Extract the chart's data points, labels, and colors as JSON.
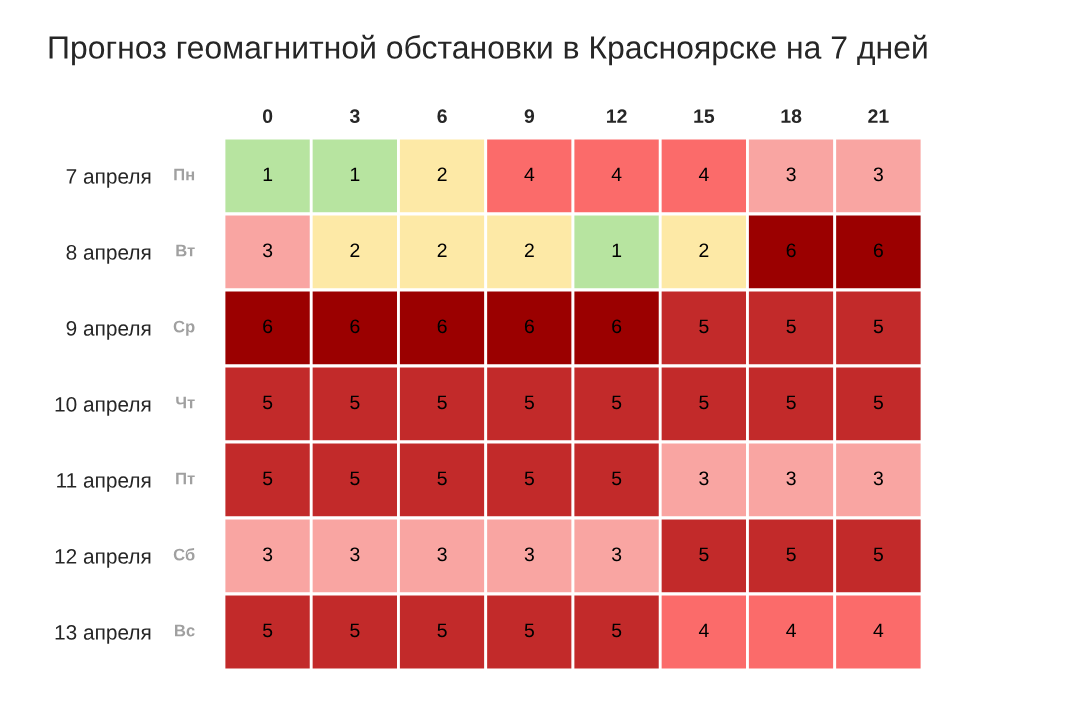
{
  "chart_data": {
    "type": "heatmap",
    "title": "Прогноз геомагнитной обстановки в Красноярске на 7 дней",
    "categories": [
      "0",
      "3",
      "6",
      "9",
      "12",
      "15",
      "18",
      "21"
    ],
    "y_categories": [
      "7 апреля",
      "8 апреля",
      "9 апреля",
      "10 апреля",
      "11 апреля",
      "12 апреля",
      "13 апреля"
    ],
    "y2_categories": [
      "Пн",
      "Вт",
      "Ср",
      "Чт",
      "Пт",
      "Сб",
      "Вс"
    ],
    "cells": [
      [
        1,
        1,
        2,
        4,
        4,
        4,
        3,
        3
      ],
      [
        3,
        2,
        2,
        2,
        1,
        2,
        6,
        6
      ],
      [
        6,
        6,
        6,
        6,
        6,
        5,
        5,
        5
      ],
      [
        5,
        5,
        5,
        5,
        5,
        5,
        5,
        5
      ],
      [
        5,
        5,
        5,
        5,
        5,
        3,
        3,
        3
      ],
      [
        3,
        3,
        3,
        3,
        3,
        5,
        5,
        5
      ],
      [
        5,
        5,
        5,
        5,
        5,
        4,
        4,
        4
      ]
    ],
    "colors": [
      "#b7e4a0",
      "#fde9a6",
      "#f9a5a2",
      "#fb6b6a",
      "#c22a2a",
      "#9b0000"
    ],
    "data_labels": true
  }
}
